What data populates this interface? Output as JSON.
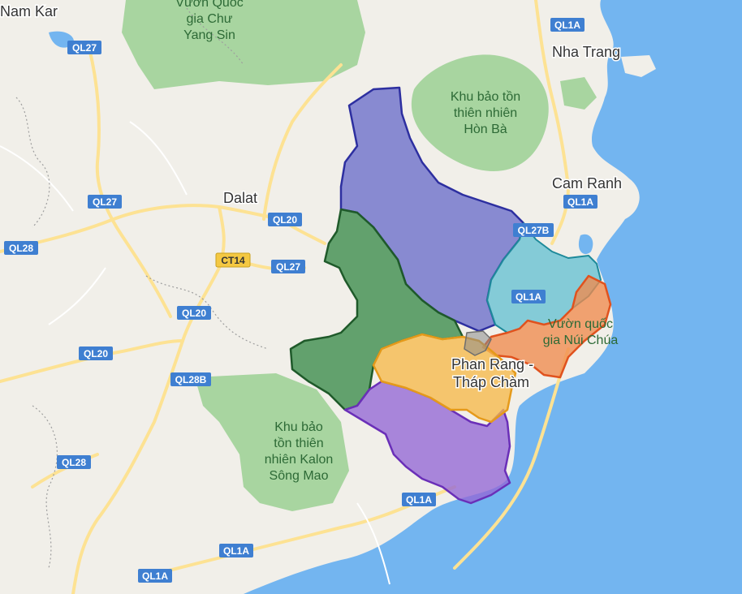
{
  "places": {
    "nam_kar": "Nam Kar",
    "nha_trang": "Nha Trang",
    "cam_ranh": "Cam Ranh",
    "dalat": "Dalat",
    "phan_rang_1": "Phan Rang -",
    "phan_rang_2": "Tháp Chàm"
  },
  "parks": {
    "chu_yang_sin": [
      "Vườn Quốc",
      "gia Chư",
      "Yang Sin"
    ],
    "hon_ba": [
      "Khu bảo tồn",
      "thiên nhiên",
      "Hòn Bà"
    ],
    "nui_chua": [
      "Vườn quốc",
      "gia Núi Chúa"
    ],
    "kalon": [
      "Khu bảo",
      "tồn thiên",
      "nhiên Kalon",
      "Sông Mao"
    ]
  },
  "shields": {
    "ql27_a": "QL27",
    "ql27_b": "QL27",
    "ql27_c": "QL27",
    "ql28_a": "QL28",
    "ql28_b": "QL28",
    "ql20_a": "QL20",
    "ql20_b": "QL20",
    "ql20_c": "QL20",
    "ql28b": "QL28B",
    "ct14": "CT14",
    "ql1a_top": "QL1A",
    "ql1a_cam": "QL1A",
    "ql27b": "QL27B",
    "ql1a_mid": "QL1A",
    "ql1a_s1": "QL1A",
    "ql1a_s2": "QL1A",
    "ql1a_s3": "QL1A"
  },
  "colors": {
    "sea": "#73b5f0",
    "land": "#f1efe9",
    "park": "#a8d5a0",
    "road": "#fde293",
    "shield": "#3f7fd1",
    "shield_ct": "#f4c842",
    "district_blue": "#5f63c8",
    "district_green": "#3a8a4a",
    "district_purple": "#9466d6",
    "district_orange": "#f6b84a",
    "district_red": "#f08a4e",
    "district_teal": "#5fbfd0"
  }
}
